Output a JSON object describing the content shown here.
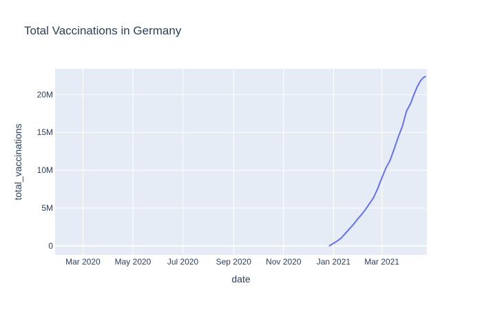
{
  "chart_data": {
    "type": "line",
    "title": "Total Vaccinations in Germany",
    "xlabel": "date",
    "ylabel": "total_vaccinations",
    "xlim": [
      "2020-01-27",
      "2021-04-25"
    ],
    "ylim": [
      -1200000,
      23400000
    ],
    "x_ticks": [
      {
        "date": "2020-03-01",
        "label": "Mar 2020"
      },
      {
        "date": "2020-05-01",
        "label": "May 2020"
      },
      {
        "date": "2020-07-01",
        "label": "Jul 2020"
      },
      {
        "date": "2020-09-01",
        "label": "Sep 2020"
      },
      {
        "date": "2020-11-01",
        "label": "Nov 2020"
      },
      {
        "date": "2021-01-01",
        "label": "Jan 2021"
      },
      {
        "date": "2021-03-01",
        "label": "Mar 2021"
      }
    ],
    "y_ticks": [
      {
        "value": 0,
        "label": "0"
      },
      {
        "value": 5000000,
        "label": "5M"
      },
      {
        "value": 10000000,
        "label": "10M"
      },
      {
        "value": 15000000,
        "label": "15M"
      },
      {
        "value": 20000000,
        "label": "20M"
      }
    ],
    "grid": true,
    "series": [
      {
        "color": "#636efa",
        "x": [
          "2020-12-27",
          "2020-12-31",
          "2021-01-05",
          "2021-01-10",
          "2021-01-15",
          "2021-01-20",
          "2021-01-25",
          "2021-01-30",
          "2021-02-04",
          "2021-02-09",
          "2021-02-14",
          "2021-02-19",
          "2021-02-24",
          "2021-03-01",
          "2021-03-06",
          "2021-03-11",
          "2021-03-16",
          "2021-03-21",
          "2021-03-26",
          "2021-03-31",
          "2021-04-05",
          "2021-04-08",
          "2021-04-13",
          "2021-04-17",
          "2021-04-20",
          "2021-04-23"
        ],
        "y": [
          0,
          270000,
          600000,
          1000000,
          1600000,
          2200000,
          2800000,
          3500000,
          4100000,
          4800000,
          5600000,
          6400000,
          7600000,
          9000000,
          10300000,
          11300000,
          12800000,
          14400000,
          15800000,
          17800000,
          18800000,
          19700000,
          21000000,
          21800000,
          22200000,
          22400000
        ]
      }
    ],
    "colors": {
      "plot_bg": "#e5ecf6",
      "grid": "#ffffff",
      "text": "#2a3f5f",
      "line": "#636efa"
    }
  }
}
